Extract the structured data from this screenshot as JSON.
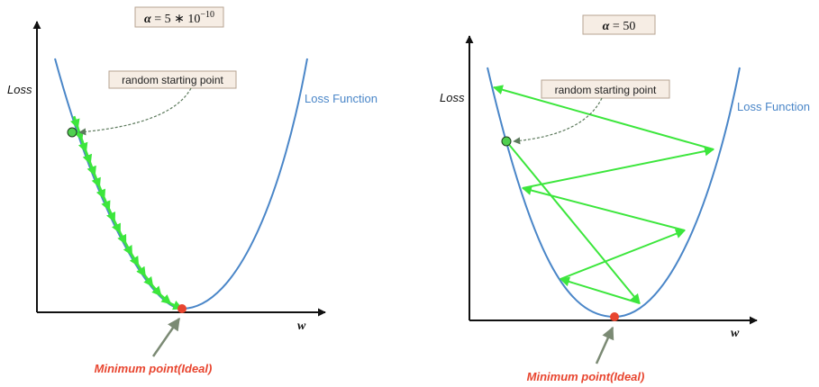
{
  "colors": {
    "curve": "#4a86c8",
    "steps": "#3ce63c",
    "start_point": "#4fd04f",
    "minimum_point": "#e8452f",
    "minimum_label": "#e8452f",
    "label_box_fill": "#f6ede4",
    "label_box_stroke": "#b7a392",
    "axis": "#111111",
    "pointer_arrow": "#7b8a74",
    "dashed_arrow": "#5d7a5d"
  },
  "panels": [
    {
      "alpha_symbol": "α",
      "alpha_value": " = 5 ∗ 10",
      "alpha_exponent": "−10",
      "y_axis_label": "Loss",
      "x_axis_label": "w",
      "curve_label": "Loss Function",
      "start_label": "random starting point",
      "minimum_label": "Minimum point(Ideal)"
    },
    {
      "alpha_symbol": "α",
      "alpha_value": " = 50",
      "alpha_exponent": "",
      "y_axis_label": "Loss",
      "x_axis_label": "w",
      "curve_label": "Loss Function",
      "start_label": "random starting point",
      "minimum_label": "Minimum point(Ideal)"
    }
  ]
}
